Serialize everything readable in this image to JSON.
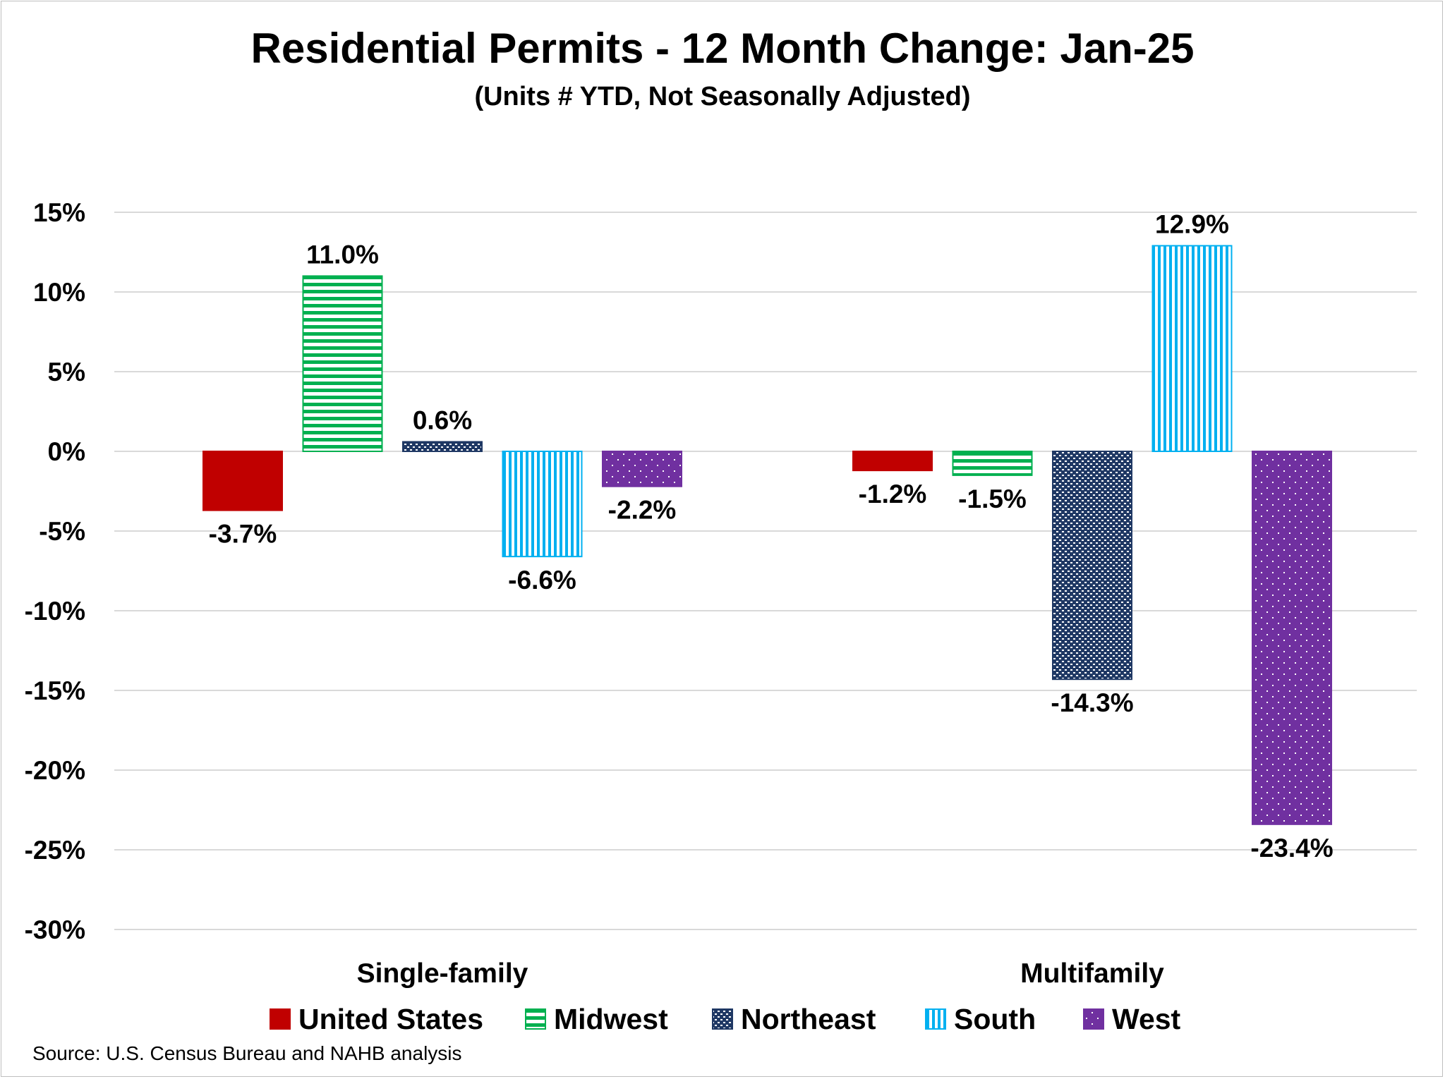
{
  "chart_data": {
    "type": "bar",
    "title": "Residential Permits - 12 Month Change:  Jan-25",
    "subtitle": "(Units # YTD, Not Seasonally Adjusted)",
    "categories": [
      "Single-family",
      "Multifamily"
    ],
    "series": [
      {
        "name": "United States",
        "values": [
          -3.7,
          -1.2
        ],
        "labels": [
          "-3.7%",
          "-1.2%"
        ],
        "color": "#c00000",
        "pattern": "solid"
      },
      {
        "name": "Midwest",
        "values": [
          11.0,
          -1.5
        ],
        "labels": [
          "11.0%",
          "-1.5%"
        ],
        "color": "#00b050",
        "pattern": "horizontal-lines"
      },
      {
        "name": "Northeast",
        "values": [
          0.6,
          -14.3
        ],
        "labels": [
          "0.6%",
          "-14.3%"
        ],
        "color": "#1f3864",
        "pattern": "dots-dense"
      },
      {
        "name": "South",
        "values": [
          -6.6,
          12.9
        ],
        "labels": [
          "-6.6%",
          "12.9%"
        ],
        "color": "#00b0f0",
        "pattern": "vertical-lines"
      },
      {
        "name": "West",
        "values": [
          -2.2,
          -23.4
        ],
        "labels": [
          "-2.2%",
          "-23.4%"
        ],
        "color": "#7030a0",
        "pattern": "dots-sparse"
      }
    ],
    "yticks": [
      15,
      10,
      5,
      0,
      -5,
      -10,
      -15,
      -20,
      -25,
      -30
    ],
    "ytick_labels": [
      "15%",
      "10%",
      "5%",
      "0%",
      "-5%",
      "-10%",
      "-15%",
      "-20%",
      "-25%",
      "-30%"
    ],
    "ylim": [
      -30,
      15
    ],
    "xlabel": "",
    "ylabel": "",
    "grid": true,
    "legend_position": "bottom"
  },
  "source": "Source: U.S. Census Bureau and NAHB analysis"
}
